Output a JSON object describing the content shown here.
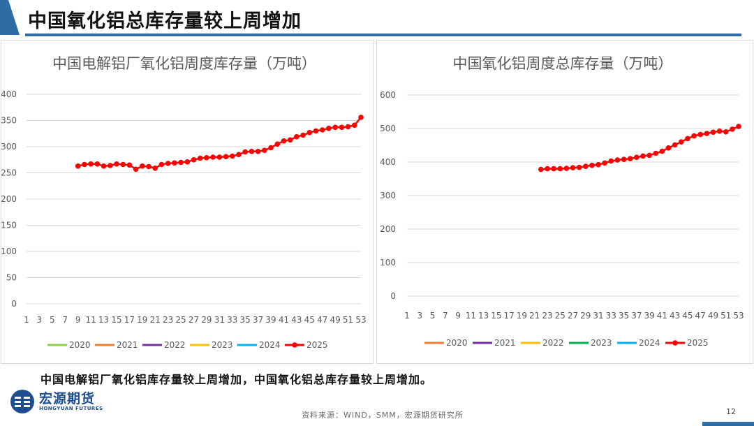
{
  "header": {
    "title": "中国氧化铝总库存量较上周增加"
  },
  "summary": "中国电解铝厂氧化铝库存量较上周增加，中国氧化铝总库存量较上周增加。",
  "footer": {
    "logo_cn": "宏源期货",
    "logo_en": "HONGYUAN FUTURES",
    "source": "资料来源：WIND，SMM，宏源期货研究所",
    "page_number": "12"
  },
  "colors": {
    "accent": "#2e6da4",
    "series_2025": "#ff0000"
  },
  "chart_data": [
    {
      "type": "line",
      "title": "中国电解铝厂氧化铝周度库存量（万吨）",
      "xlim": [
        1,
        53
      ],
      "x_tick_labels": [
        "1",
        "3",
        "5",
        "7",
        "9",
        "11",
        "13",
        "15",
        "17",
        "19",
        "21",
        "23",
        "25",
        "27",
        "29",
        "31",
        "33",
        "35",
        "37",
        "39",
        "41",
        "43",
        "45",
        "47",
        "49",
        "51",
        "53"
      ],
      "ylim": [
        0,
        400
      ],
      "y_ticks": [
        0,
        50,
        100,
        150,
        200,
        250,
        300,
        350,
        400
      ],
      "grid": true,
      "legend": [
        {
          "name": "2020",
          "color": "#92d050"
        },
        {
          "name": "2021",
          "color": "#ed7d31"
        },
        {
          "name": "2022",
          "color": "#7030a0"
        },
        {
          "name": "2023",
          "color": "#ffc000"
        },
        {
          "name": "2024",
          "color": "#00b0f0"
        },
        {
          "name": "2025",
          "color": "#ff0000"
        }
      ],
      "legend_position": "bottom",
      "series": [
        {
          "name": "2025",
          "color": "#ff0000",
          "x": [
            9,
            10,
            11,
            12,
            13,
            14,
            15,
            16,
            17,
            18,
            19,
            20,
            21,
            22,
            23,
            24,
            25,
            26,
            27,
            28,
            29,
            30,
            31,
            32,
            33,
            34,
            35,
            36,
            37,
            38,
            39,
            40,
            41,
            42,
            43,
            44,
            45,
            46,
            47,
            48,
            49,
            50,
            51,
            52,
            53
          ],
          "values": [
            263,
            266,
            267,
            267,
            263,
            264,
            267,
            266,
            265,
            257,
            263,
            262,
            259,
            266,
            268,
            269,
            270,
            271,
            275,
            278,
            279,
            280,
            280,
            281,
            282,
            285,
            290,
            291,
            291,
            293,
            298,
            305,
            311,
            313,
            319,
            322,
            327,
            330,
            332,
            335,
            337,
            337,
            338,
            341,
            356
          ]
        }
      ]
    },
    {
      "type": "line",
      "title": "中国氧化铝周度总库存量（万吨）",
      "xlim": [
        1,
        53
      ],
      "x_tick_labels": [
        "1",
        "3",
        "5",
        "7",
        "9",
        "11",
        "13",
        "15",
        "17",
        "19",
        "21",
        "23",
        "25",
        "27",
        "29",
        "31",
        "33",
        "35",
        "37",
        "39",
        "41",
        "43",
        "45",
        "47",
        "49",
        "51",
        "53"
      ],
      "ylim": [
        0,
        600
      ],
      "y_ticks": [
        0,
        100,
        200,
        300,
        400,
        500,
        600
      ],
      "grid": true,
      "legend": [
        {
          "name": "2020",
          "color": "#ed7d31"
        },
        {
          "name": "2021",
          "color": "#7030a0"
        },
        {
          "name": "2022",
          "color": "#ffc000"
        },
        {
          "name": "2023",
          "color": "#00b050"
        },
        {
          "name": "2024",
          "color": "#00b0f0"
        },
        {
          "name": "2025",
          "color": "#ff0000"
        }
      ],
      "legend_position": "bottom",
      "series": [
        {
          "name": "2025",
          "color": "#ff0000",
          "x": [
            22,
            23,
            24,
            25,
            26,
            27,
            28,
            29,
            30,
            31,
            32,
            33,
            34,
            35,
            36,
            37,
            38,
            39,
            40,
            41,
            42,
            43,
            44,
            45,
            46,
            47,
            48,
            49,
            50,
            51,
            52,
            53
          ],
          "values": [
            378,
            380,
            380,
            380,
            381,
            383,
            384,
            387,
            390,
            392,
            397,
            403,
            406,
            408,
            410,
            414,
            418,
            420,
            426,
            432,
            442,
            451,
            460,
            470,
            478,
            482,
            485,
            489,
            492,
            490,
            498,
            506
          ]
        }
      ]
    }
  ]
}
